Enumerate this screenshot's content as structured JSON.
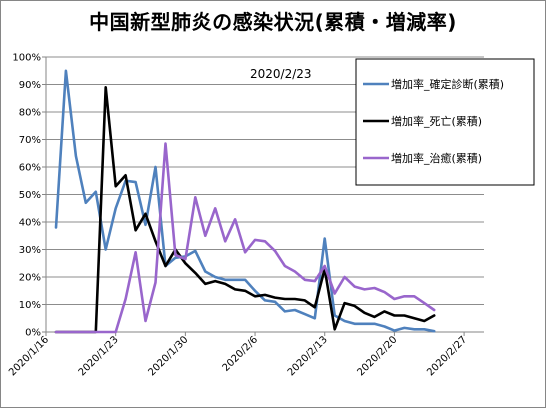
{
  "chart_data": {
    "type": "line",
    "title": "中国新型肺炎の感染状況(累積・増減率)",
    "annotation": "2020/2/23",
    "xlabel": "",
    "ylabel": "",
    "x_tick_labels": [
      "2020/1/16",
      "2020/1/23",
      "2020/1/30",
      "2020/2/6",
      "2020/2/13",
      "2020/2/20",
      "2020/2/27"
    ],
    "x_ticks": [
      "2020-01-16",
      "2020-01-23",
      "2020-01-30",
      "2020-02-06",
      "2020-02-13",
      "2020-02-20",
      "2020-02-27"
    ],
    "xlim": [
      "2020-01-16",
      "2020-02-29"
    ],
    "y_tick_labels": [
      "0%",
      "10%",
      "20%",
      "30%",
      "40%",
      "50%",
      "60%",
      "70%",
      "80%",
      "90%",
      "100%"
    ],
    "ylim": [
      0,
      1
    ],
    "grid": "horizontal",
    "legend_position": "top-right",
    "series": [
      {
        "name": "増加率_確定診断(累積)",
        "color": "#4f81bd",
        "x": [
          "2020-01-17",
          "2020-01-18",
          "2020-01-19",
          "2020-01-20",
          "2020-01-21",
          "2020-01-22",
          "2020-01-23",
          "2020-01-24",
          "2020-01-25",
          "2020-01-26",
          "2020-01-27",
          "2020-01-28",
          "2020-01-29",
          "2020-01-30",
          "2020-01-31",
          "2020-02-01",
          "2020-02-02",
          "2020-02-03",
          "2020-02-04",
          "2020-02-05",
          "2020-02-06",
          "2020-02-07",
          "2020-02-08",
          "2020-02-09",
          "2020-02-10",
          "2020-02-11",
          "2020-02-12",
          "2020-02-13",
          "2020-02-14",
          "2020-02-15",
          "2020-02-16",
          "2020-02-17",
          "2020-02-18",
          "2020-02-19",
          "2020-02-20",
          "2020-02-21",
          "2020-02-22",
          "2020-02-23",
          "2020-02-24"
        ],
        "values": [
          0.38,
          0.95,
          0.64,
          0.47,
          0.51,
          0.3,
          0.45,
          0.55,
          0.545,
          0.39,
          0.6,
          0.24,
          0.27,
          0.275,
          0.295,
          0.22,
          0.2,
          0.19,
          0.19,
          0.19,
          0.15,
          0.115,
          0.11,
          0.075,
          0.08,
          0.065,
          0.05,
          0.34,
          0.06,
          0.04,
          0.03,
          0.03,
          0.03,
          0.02,
          0.005,
          0.015,
          0.01,
          0.01,
          0.003
        ]
      },
      {
        "name": "増加率_死亡(累積)",
        "color": "#000000",
        "x": [
          "2020-01-17",
          "2020-01-18",
          "2020-01-19",
          "2020-01-20",
          "2020-01-21",
          "2020-01-22",
          "2020-01-23",
          "2020-01-24",
          "2020-01-25",
          "2020-01-26",
          "2020-01-27",
          "2020-01-28",
          "2020-01-29",
          "2020-01-30",
          "2020-01-31",
          "2020-02-01",
          "2020-02-02",
          "2020-02-03",
          "2020-02-04",
          "2020-02-05",
          "2020-02-06",
          "2020-02-07",
          "2020-02-08",
          "2020-02-09",
          "2020-02-10",
          "2020-02-11",
          "2020-02-12",
          "2020-02-13",
          "2020-02-14",
          "2020-02-15",
          "2020-02-16",
          "2020-02-17",
          "2020-02-18",
          "2020-02-19",
          "2020-02-20",
          "2020-02-21",
          "2020-02-22",
          "2020-02-23",
          "2020-02-24"
        ],
        "values": [
          0,
          0,
          0,
          0,
          0,
          0.89,
          0.53,
          0.57,
          0.37,
          0.43,
          0.33,
          0.24,
          0.3,
          0.25,
          0.215,
          0.175,
          0.185,
          0.175,
          0.155,
          0.15,
          0.13,
          0.135,
          0.125,
          0.12,
          0.12,
          0.115,
          0.09,
          0.23,
          0.01,
          0.105,
          0.095,
          0.07,
          0.055,
          0.075,
          0.06,
          0.06,
          0.05,
          0.04,
          0.06
        ]
      },
      {
        "name": "増加率_治癒(累積)",
        "color": "#9966cc",
        "x": [
          "2020-01-17",
          "2020-01-18",
          "2020-01-19",
          "2020-01-20",
          "2020-01-21",
          "2020-01-22",
          "2020-01-23",
          "2020-01-24",
          "2020-01-25",
          "2020-01-26",
          "2020-01-27",
          "2020-01-28",
          "2020-01-29",
          "2020-01-30",
          "2020-01-31",
          "2020-02-01",
          "2020-02-02",
          "2020-02-03",
          "2020-02-04",
          "2020-02-05",
          "2020-02-06",
          "2020-02-07",
          "2020-02-08",
          "2020-02-09",
          "2020-02-10",
          "2020-02-11",
          "2020-02-12",
          "2020-02-13",
          "2020-02-14",
          "2020-02-15",
          "2020-02-16",
          "2020-02-17",
          "2020-02-18",
          "2020-02-19",
          "2020-02-20",
          "2020-02-21",
          "2020-02-22",
          "2020-02-23",
          "2020-02-24"
        ],
        "values": [
          0,
          0,
          0,
          0,
          0,
          0,
          0,
          0.12,
          0.29,
          0.04,
          0.18,
          0.685,
          0.28,
          0.265,
          0.49,
          0.35,
          0.45,
          0.33,
          0.41,
          0.29,
          0.335,
          0.33,
          0.295,
          0.24,
          0.22,
          0.19,
          0.185,
          0.24,
          0.14,
          0.2,
          0.165,
          0.155,
          0.16,
          0.145,
          0.12,
          0.13,
          0.13,
          0.105,
          0.08
        ]
      }
    ]
  }
}
